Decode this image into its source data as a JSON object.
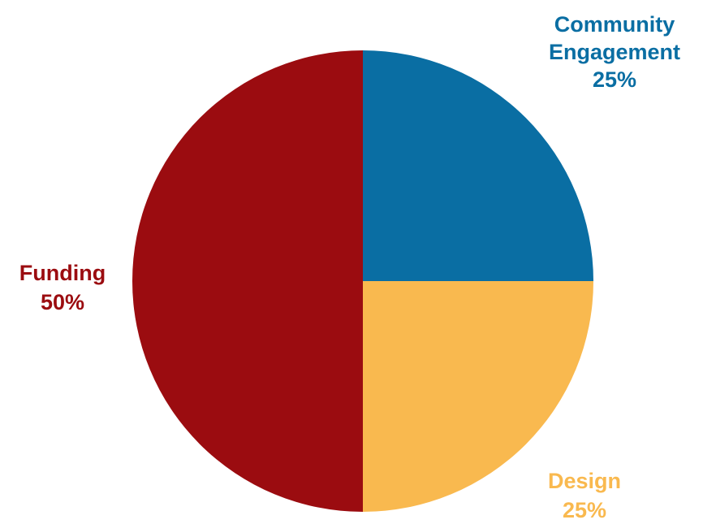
{
  "chart_data": {
    "type": "pie",
    "title": "",
    "slices": [
      {
        "label_lines": [
          "Community",
          "Engagement"
        ],
        "value": 25,
        "value_label": "25%",
        "color": "#0a6ea3"
      },
      {
        "label_lines": [
          "Design"
        ],
        "value": 25,
        "value_label": "25%",
        "color": "#f9b94f"
      },
      {
        "label_lines": [
          "Funding"
        ],
        "value": 50,
        "value_label": "50%",
        "color": "#9b0c10"
      }
    ],
    "start_angle_deg": 0,
    "direction": "clockwise",
    "legend": "none"
  }
}
